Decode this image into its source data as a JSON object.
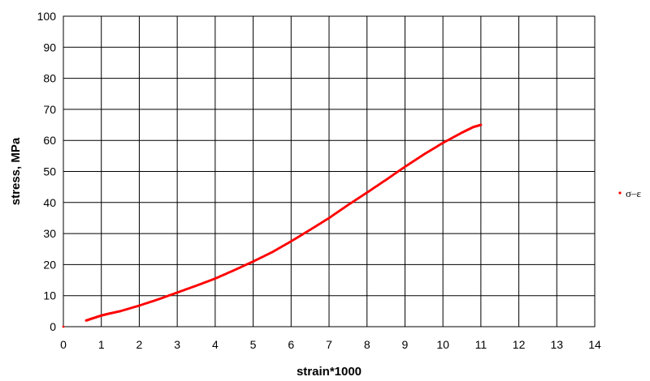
{
  "chart_data": {
    "type": "scatter",
    "title": "",
    "xlabel": "strain*1000",
    "ylabel": "stress, MPa",
    "xlim": [
      0,
      14
    ],
    "ylim": [
      0,
      100
    ],
    "x_ticks": [
      "0",
      "1",
      "2",
      "3",
      "4",
      "5",
      "6",
      "7",
      "8",
      "9",
      "10",
      "11",
      "12",
      "13",
      "14"
    ],
    "y_ticks": [
      "0",
      "10",
      "20",
      "30",
      "40",
      "50",
      "60",
      "70",
      "80",
      "90",
      "100"
    ],
    "grid": true,
    "legend_position": "right",
    "series": [
      {
        "name": "σ–ε",
        "color": "#ff0000",
        "marker": "dot",
        "points": [
          [
            0.0,
            0.0
          ],
          [
            0.6,
            2.0
          ],
          [
            0.8,
            2.8
          ],
          [
            1.0,
            3.6
          ],
          [
            1.2,
            4.2
          ],
          [
            1.5,
            5.0
          ],
          [
            2.0,
            6.8
          ],
          [
            2.5,
            8.8
          ],
          [
            3.0,
            11.0
          ],
          [
            3.5,
            13.2
          ],
          [
            4.0,
            15.5
          ],
          [
            4.5,
            18.2
          ],
          [
            5.0,
            21.0
          ],
          [
            5.5,
            24.0
          ],
          [
            6.0,
            27.5
          ],
          [
            6.5,
            31.2
          ],
          [
            7.0,
            35.0
          ],
          [
            7.5,
            39.2
          ],
          [
            8.0,
            43.2
          ],
          [
            8.5,
            47.3
          ],
          [
            9.0,
            51.5
          ],
          [
            9.5,
            55.5
          ],
          [
            10.0,
            59.2
          ],
          [
            10.5,
            62.5
          ],
          [
            10.8,
            64.3
          ],
          [
            11.0,
            65.0
          ]
        ]
      }
    ]
  }
}
